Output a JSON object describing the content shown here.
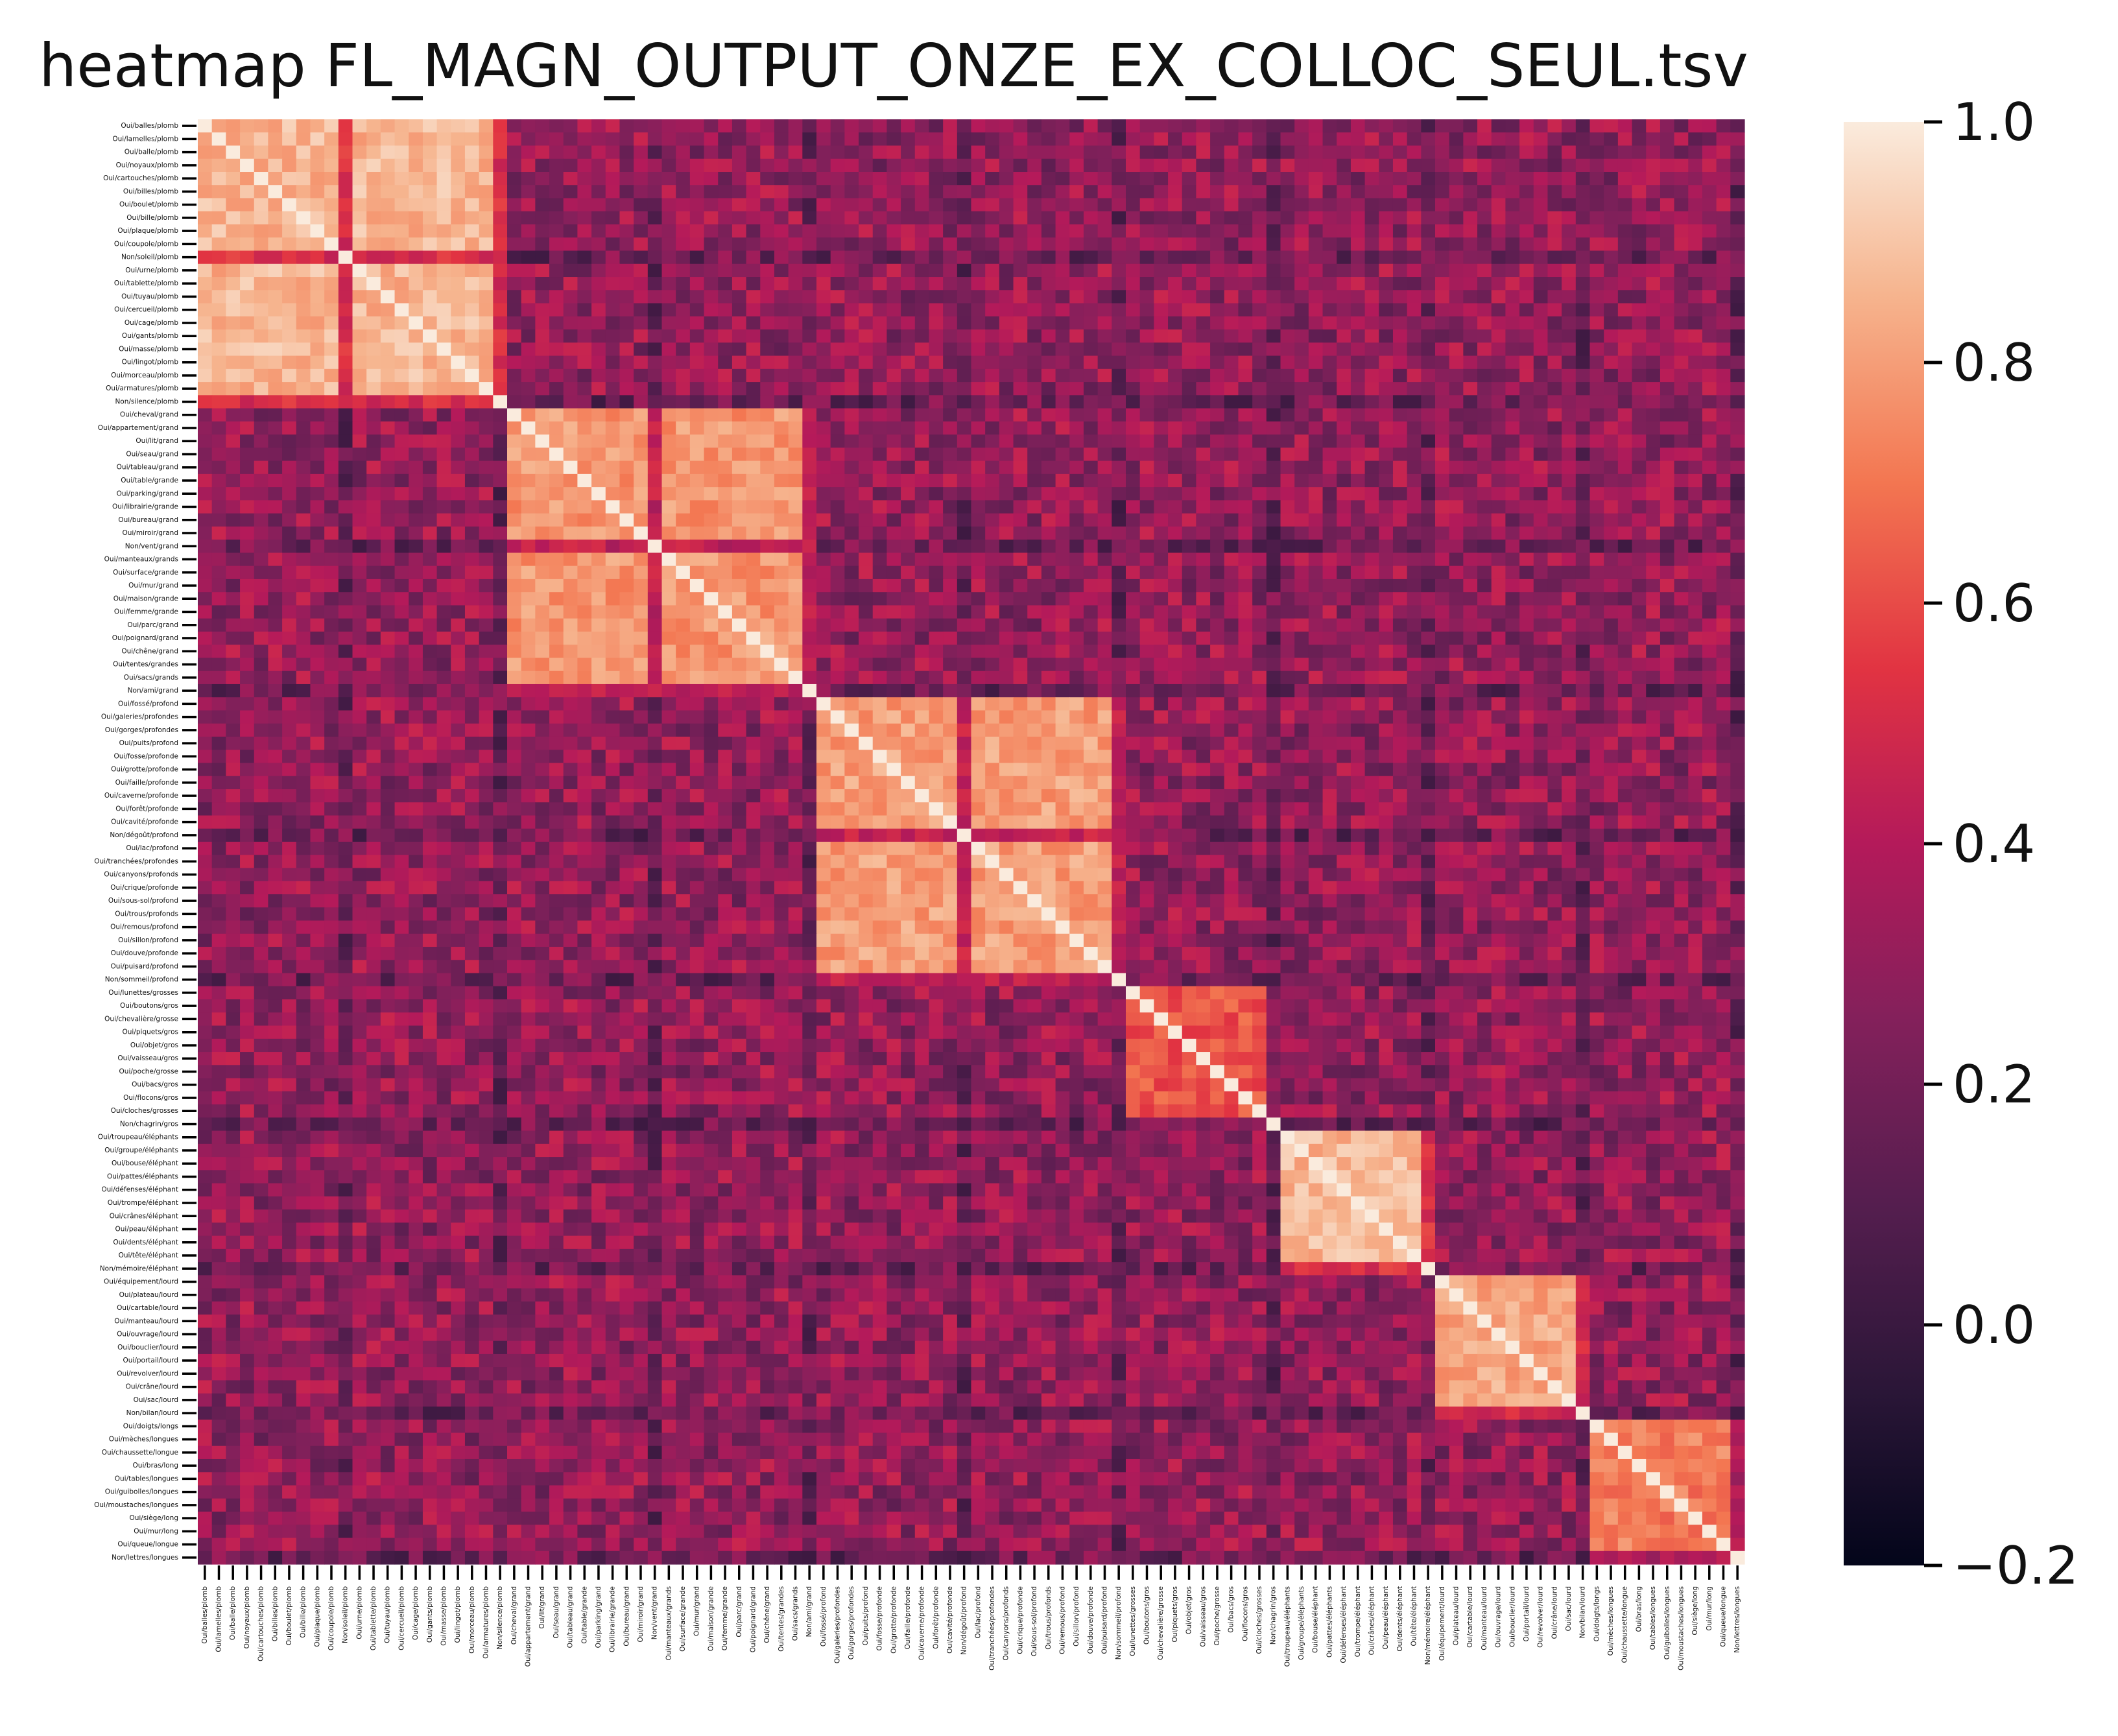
{
  "chart_data": {
    "type": "heatmap",
    "title": "heatmap FL_MAGN_OUTPUT_ONZE_EX_COLLOC_SEUL.tsv",
    "labels": [
      "Oui/balles/plomb",
      "Oui/lamelles/plomb",
      "Oui/balle/plomb",
      "Oui/noyaux/plomb",
      "Oui/cartouches/plomb",
      "Oui/billes/plomb",
      "Oui/boulet/plomb",
      "Oui/bille/plomb",
      "Oui/plaque/plomb",
      "Oui/coupole/plomb",
      "Non/soleil/plomb",
      "Oui/urne/plomb",
      "Oui/tablette/plomb",
      "Oui/tuyau/plomb",
      "Oui/cercueil/plomb",
      "Oui/cage/plomb",
      "Oui/gants/plomb",
      "Oui/masse/plomb",
      "Oui/lingot/plomb",
      "Oui/morceau/plomb",
      "Oui/armatures/plomb",
      "Non/silence/plomb",
      "Oui/cheval/grand",
      "Oui/appartement/grand",
      "Oui/lit/grand",
      "Oui/seau/grand",
      "Oui/tableau/grand",
      "Oui/table/grande",
      "Oui/parking/grand",
      "Oui/librairie/grande",
      "Oui/bureau/grand",
      "Oui/miroir/grand",
      "Non/vent/grand",
      "Oui/manteaux/grands",
      "Oui/surface/grande",
      "Oui/mur/grand",
      "Oui/maison/grande",
      "Oui/femme/grande",
      "Oui/parc/grand",
      "Oui/poignard/grand",
      "Oui/chêne/grand",
      "Oui/tentes/grandes",
      "Oui/sacs/grands",
      "Non/ami/grand",
      "Oui/fossé/profond",
      "Oui/galeries/profondes",
      "Oui/gorges/profondes",
      "Oui/puits/profond",
      "Oui/fosse/profonde",
      "Oui/grotte/profonde",
      "Oui/faille/profonde",
      "Oui/caverne/profonde",
      "Oui/forêt/profonde",
      "Oui/cavité/profonde",
      "Non/dégoût/profond",
      "Oui/lac/profond",
      "Oui/tranchées/profondes",
      "Oui/canyons/profonds",
      "Oui/crique/profonde",
      "Oui/sous-sol/profond",
      "Oui/trous/profonds",
      "Oui/remous/profond",
      "Oui/sillon/profond",
      "Oui/douve/profonde",
      "Oui/puisard/profond",
      "Non/sommeil/profond",
      "Oui/lunettes/grosses",
      "Oui/boutons/gros",
      "Oui/chevalière/grosse",
      "Oui/piquets/gros",
      "Oui/objet/gros",
      "Oui/vaisseau/gros",
      "Oui/poche/grosse",
      "Oui/bacs/gros",
      "Oui/flocons/gros",
      "Oui/cloches/grosses",
      "Non/chagrin/gros",
      "Oui/troupeau/éléphants",
      "Oui/groupe/éléphants",
      "Oui/bouse/éléphant",
      "Oui/pattes/éléphants",
      "Oui/défenses/éléphant",
      "Oui/trompe/éléphant",
      "Oui/crânes/éléphant",
      "Oui/peau/éléphant",
      "Oui/dents/éléphant",
      "Oui/tête/éléphant",
      "Non/mémoire/éléphant",
      "Oui/équipement/lourd",
      "Oui/plateau/lourd",
      "Oui/cartable/lourd",
      "Oui/manteau/lourd",
      "Oui/ouvrage/lourd",
      "Oui/bouclier/lourd",
      "Oui/portail/lourd",
      "Oui/revolver/lourd",
      "Oui/crâne/lourd",
      "Oui/sac/lourd",
      "Non/bilan/lourd",
      "Oui/doigts/longs",
      "Oui/mèches/longues",
      "Oui/chaussette/longue",
      "Oui/bras/long",
      "Oui/tables/longues",
      "Oui/guibolles/longues",
      "Oui/moustaches/longues",
      "Oui/siège/long",
      "Oui/mur/long",
      "Oui/queue/longue",
      "Non/lettres/longues"
    ],
    "group_sizes": [
      22,
      22,
      22,
      11,
      11,
      11,
      11
    ],
    "values_note_key": "z",
    "z_model": {
      "diagonal": 1.0,
      "within_group": [
        0.86,
        0.78,
        0.8,
        0.62,
        0.86,
        0.82,
        0.72
      ],
      "between_group_base": 0.3,
      "colorbar_range": [
        -0.2,
        1.0
      ]
    },
    "colorbar": {
      "min": -0.2,
      "max": 1.0,
      "ticks": [
        1.0,
        0.8,
        0.6,
        0.4,
        0.2,
        0.0,
        -0.2
      ],
      "tick_labels": [
        "1.0",
        "0.8",
        "0.6",
        "0.4",
        "0.2",
        "0.0",
        "−0.2"
      ],
      "colormap": "rocket"
    }
  }
}
